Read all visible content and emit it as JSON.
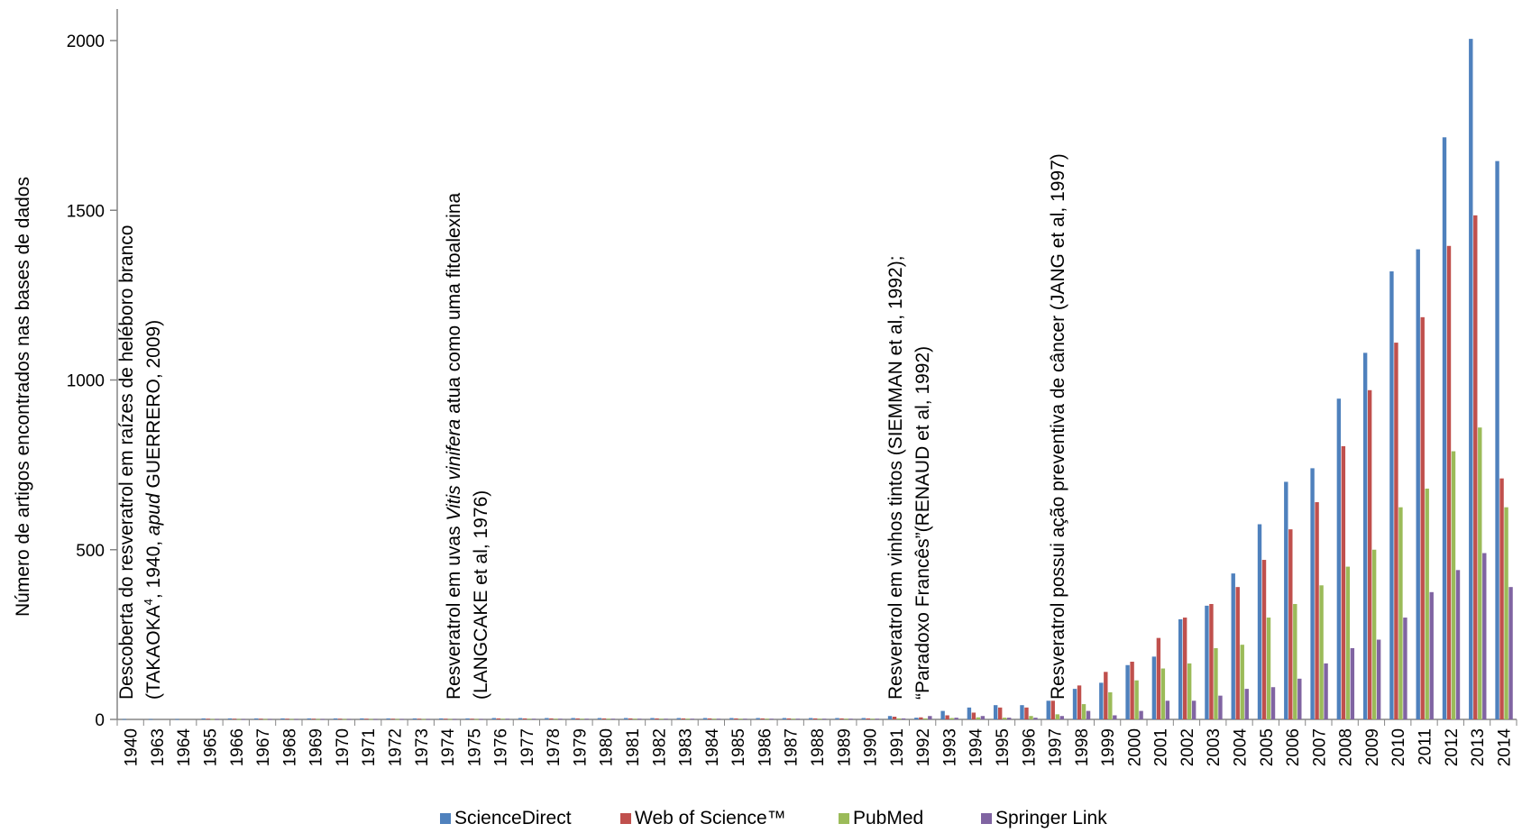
{
  "chart_data": {
    "type": "bar",
    "ylabel": "Número de artigos encontrados nas bases de dados",
    "ylim": [
      0,
      2000
    ],
    "yticks": [
      0,
      500,
      1000,
      1500,
      2000
    ],
    "categories": [
      "1940",
      "1963",
      "1964",
      "1965",
      "1966",
      "1967",
      "1968",
      "1969",
      "1970",
      "1971",
      "1972",
      "1973",
      "1974",
      "1975",
      "1976",
      "1977",
      "1978",
      "1979",
      "1980",
      "1981",
      "1982",
      "1983",
      "1984",
      "1985",
      "1986",
      "1987",
      "1988",
      "1989",
      "1990",
      "1991",
      "1992",
      "1993",
      "1994",
      "1995",
      "1996",
      "1997",
      "1998",
      "1999",
      "2000",
      "2001",
      "2002",
      "2003",
      "2004",
      "2005",
      "2006",
      "2007",
      "2008",
      "2009",
      "2010",
      "2011",
      "2012",
      "2013",
      "2014"
    ],
    "series": [
      {
        "name": "ScienceDirect",
        "color": "#4F81BD",
        "values": [
          1,
          1,
          1,
          3,
          3,
          3,
          3,
          3,
          3,
          3,
          3,
          3,
          3,
          3,
          4,
          4,
          4,
          4,
          4,
          4,
          4,
          4,
          4,
          4,
          4,
          4,
          4,
          4,
          4,
          10,
          5,
          25,
          35,
          42,
          42,
          55,
          90,
          108,
          160,
          185,
          295,
          335,
          430,
          575,
          700,
          740,
          945,
          1080,
          1320,
          1385,
          1715,
          2005,
          1645
        ]
      },
      {
        "name": "Web of Science™",
        "color": "#C0504D",
        "values": [
          0,
          0,
          0,
          2,
          2,
          2,
          2,
          2,
          2,
          2,
          2,
          2,
          2,
          2,
          3,
          3,
          3,
          3,
          3,
          3,
          3,
          3,
          3,
          3,
          3,
          3,
          3,
          3,
          3,
          8,
          6,
          12,
          20,
          35,
          35,
          55,
          100,
          140,
          170,
          240,
          300,
          340,
          390,
          470,
          560,
          640,
          805,
          970,
          1110,
          1185,
          1395,
          1485,
          710
        ]
      },
      {
        "name": "PubMed",
        "color": "#9BBB59",
        "values": [
          0,
          0,
          0,
          1,
          1,
          1,
          1,
          1,
          1,
          1,
          1,
          1,
          1,
          1,
          2,
          2,
          2,
          2,
          2,
          2,
          2,
          2,
          2,
          2,
          2,
          2,
          2,
          2,
          2,
          3,
          3,
          4,
          6,
          5,
          10,
          15,
          45,
          80,
          115,
          150,
          165,
          210,
          220,
          300,
          340,
          395,
          450,
          500,
          625,
          680,
          790,
          860,
          625
        ]
      },
      {
        "name": "Springer Link",
        "color": "#8064A2",
        "values": [
          0,
          0,
          0,
          1,
          1,
          1,
          1,
          1,
          1,
          1,
          1,
          1,
          1,
          1,
          2,
          2,
          2,
          2,
          2,
          2,
          2,
          2,
          2,
          2,
          2,
          2,
          2,
          2,
          2,
          3,
          10,
          5,
          10,
          5,
          5,
          10,
          25,
          12,
          25,
          55,
          55,
          70,
          90,
          95,
          120,
          165,
          210,
          235,
          300,
          375,
          440,
          490,
          390
        ]
      }
    ],
    "annotations": [
      {
        "year": "1940",
        "line1_parts": [
          {
            "t": "Descoberta do resveratrol em raízes de heléboro branco",
            "i": false
          }
        ],
        "line2_parts": [
          {
            "t": "(TAKAOKA",
            "i": false
          },
          {
            "t": "4",
            "sup": true
          },
          {
            "t": ", 1940, ",
            "i": false
          },
          {
            "t": "apud",
            "i": true
          },
          {
            "t": " GUERRERO, 2009)",
            "i": false
          }
        ]
      },
      {
        "year": "1975",
        "line1_parts": [
          {
            "t": "Resveratrol em uvas ",
            "i": false
          },
          {
            "t": "Vitis vinifera",
            "i": true
          },
          {
            "t": " atua como uma fitoalexina",
            "i": false
          }
        ],
        "line2_parts": [
          {
            "t": "(LANGCAKE et al, 1976)",
            "i": false
          }
        ]
      },
      {
        "year": "1991",
        "line1_parts": [
          {
            "t": "Resveratrol em vinhos tintos (SIEMMAN et al, 1992);",
            "i": false
          }
        ],
        "line2_parts": [
          {
            "t": "“Paradoxo Francês”(RENAUD et al, 1992)",
            "i": false
          }
        ]
      },
      {
        "year": "1997",
        "line1_parts": [
          {
            "t": "Resveratrol possui ação preventiva de câncer (JANG et al, 1997)",
            "i": false
          }
        ],
        "line2_parts": []
      }
    ]
  }
}
